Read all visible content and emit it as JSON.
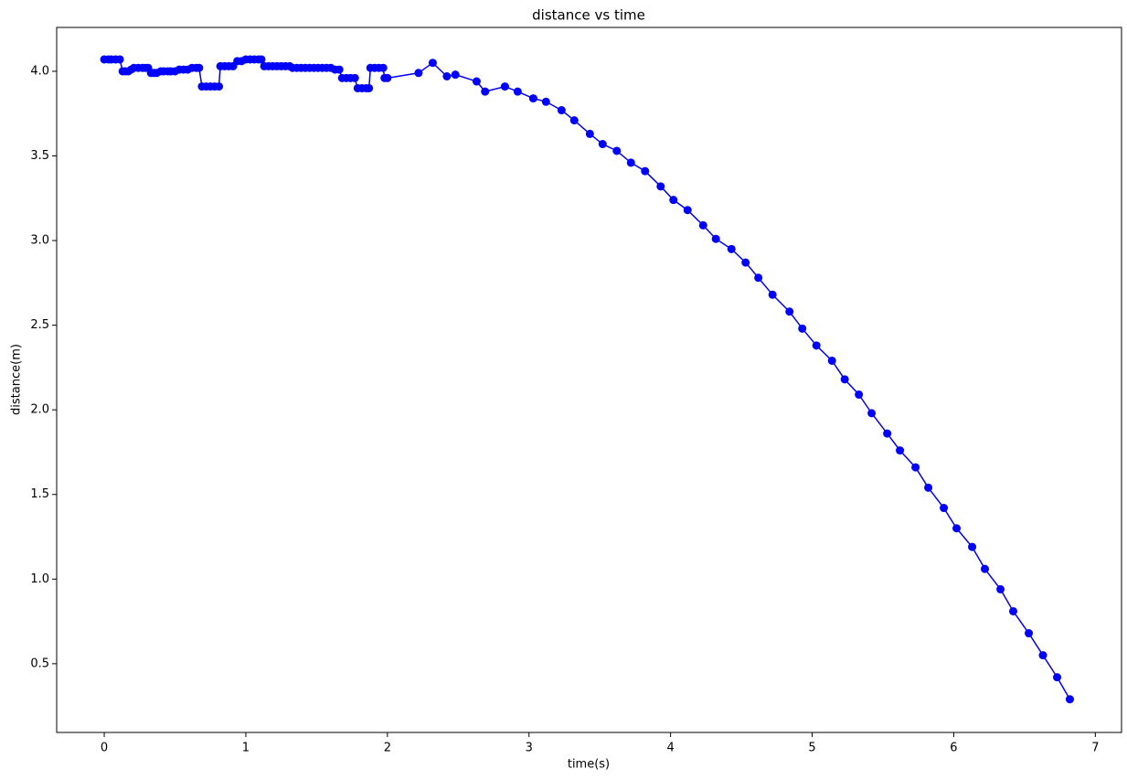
{
  "chart_data": {
    "type": "line",
    "title": "distance vs time",
    "x_label": "time(s)",
    "y_label": "distance(m)",
    "color": "#0000ff",
    "marker": true,
    "grid": false,
    "x": [
      0,
      0.03,
      0.05,
      0.08,
      0.11,
      0.13,
      0.15,
      0.17,
      0.19,
      0.21,
      0.24,
      0.27,
      0.29,
      0.31,
      0.33,
      0.35,
      0.37,
      0.4,
      0.42,
      0.45,
      0.47,
      0.5,
      0.53,
      0.56,
      0.59,
      0.62,
      0.65,
      0.67,
      0.69,
      0.72,
      0.75,
      0.78,
      0.81,
      0.82,
      0.85,
      0.88,
      0.91,
      0.94,
      0.97,
      1.0,
      1.03,
      1.06,
      1.09,
      1.11,
      1.13,
      1.16,
      1.19,
      1.22,
      1.25,
      1.28,
      1.31,
      1.33,
      1.36,
      1.39,
      1.42,
      1.45,
      1.48,
      1.51,
      1.54,
      1.57,
      1.6,
      1.63,
      1.66,
      1.68,
      1.71,
      1.74,
      1.77,
      1.79,
      1.82,
      1.85,
      1.87,
      1.88,
      1.91,
      1.94,
      1.97,
      1.98,
      2.0,
      2.22,
      2.32,
      2.42,
      2.48,
      2.63,
      2.69,
      2.83,
      2.92,
      3.03,
      3.12,
      3.23,
      3.32,
      3.43,
      3.52,
      3.62,
      3.72,
      3.82,
      3.93,
      4.02,
      4.12,
      4.23,
      4.32,
      4.43,
      4.53,
      4.62,
      4.72,
      4.84,
      4.93,
      5.03,
      5.14,
      5.23,
      5.33,
      5.42,
      5.53,
      5.62,
      5.73,
      5.82,
      5.93,
      6.02,
      6.13,
      6.22,
      6.33,
      6.42,
      6.53,
      6.63,
      6.73,
      6.82
    ],
    "values": [
      4.07,
      4.07,
      4.07,
      4.07,
      4.07,
      4.0,
      4.0,
      4.0,
      4.01,
      4.02,
      4.02,
      4.02,
      4.02,
      4.02,
      3.99,
      3.99,
      3.99,
      4.0,
      4.0,
      4.0,
      4.0,
      4.0,
      4.01,
      4.01,
      4.01,
      4.02,
      4.02,
      4.02,
      3.91,
      3.91,
      3.91,
      3.91,
      3.91,
      4.03,
      4.03,
      4.03,
      4.03,
      4.06,
      4.06,
      4.07,
      4.07,
      4.07,
      4.07,
      4.07,
      4.03,
      4.03,
      4.03,
      4.03,
      4.03,
      4.03,
      4.03,
      4.02,
      4.02,
      4.02,
      4.02,
      4.02,
      4.02,
      4.02,
      4.02,
      4.02,
      4.02,
      4.01,
      4.01,
      3.96,
      3.96,
      3.96,
      3.96,
      3.9,
      3.9,
      3.9,
      3.9,
      4.02,
      4.02,
      4.02,
      4.02,
      3.96,
      3.96,
      3.99,
      4.05,
      3.97,
      3.98,
      3.94,
      3.88,
      3.91,
      3.88,
      3.84,
      3.82,
      3.77,
      3.71,
      3.63,
      3.57,
      3.53,
      3.46,
      3.41,
      3.32,
      3.24,
      3.18,
      3.09,
      3.01,
      2.95,
      2.87,
      2.78,
      2.68,
      2.58,
      2.48,
      2.38,
      2.29,
      2.18,
      2.09,
      1.98,
      1.86,
      1.76,
      1.66,
      1.54,
      1.42,
      1.3,
      1.19,
      1.06,
      0.94,
      0.81,
      0.68,
      0.55,
      0.42,
      0.29
    ],
    "xlim": [
      -0.336,
      7.185
    ],
    "xticks": [
      0,
      1,
      2,
      3,
      4,
      5,
      6,
      7
    ],
    "ylim": [
      0.094,
      4.259
    ],
    "yticks": [
      0.5,
      {
        "value": 1,
        "label": "1.0"
      },
      1.5,
      {
        "value": 2,
        "label": "2.0"
      },
      2.5,
      {
        "value": 3,
        "label": "3.0"
      },
      3.5,
      {
        "value": 4,
        "label": "4.0"
      }
    ]
  }
}
